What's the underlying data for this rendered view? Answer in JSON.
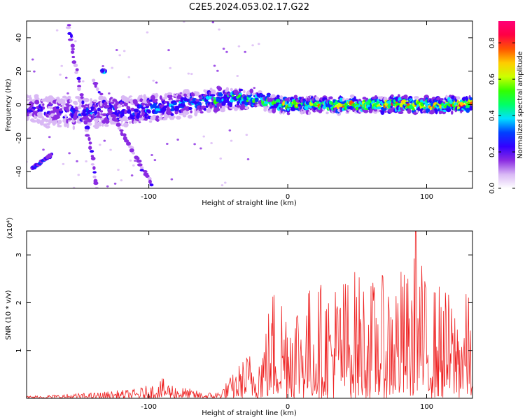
{
  "title": "C2E5.2024.053.02.17.G22",
  "colors": {
    "snr_line": "#ee2222",
    "colormap": [
      "#ffffff",
      "#d9b8f5",
      "#8a2be2",
      "#3300ff",
      "#0040ff",
      "#00e0ff",
      "#00ff66",
      "#33ff00",
      "#ccff00",
      "#ffcc00",
      "#ff5500",
      "#ff0044",
      "#ff0077"
    ]
  },
  "chart_data": [
    {
      "type": "heatmap",
      "xlabel": "Height of straight line (km)",
      "ylabel": "Frequency (Hz)",
      "xlim": [
        -188,
        133
      ],
      "ylim": [
        -50,
        50
      ],
      "xticks": [
        -100,
        0,
        100
      ],
      "yticks": [
        -40,
        -20,
        0,
        20,
        40
      ],
      "grid": false,
      "colorbar": {
        "label": "Normalized spectral amplitude",
        "range": [
          0,
          0.92
        ],
        "ticks": [
          "0.0",
          "0.2",
          "0.4",
          "0.6",
          "0.8"
        ]
      },
      "band": {
        "x": [
          -188,
          -160,
          -140,
          -120,
          -100,
          -80,
          -60,
          -40,
          -25,
          -10,
          0,
          40,
          80,
          133
        ],
        "center_hz": [
          -3,
          -4,
          -5,
          -4,
          -3,
          -1,
          2,
          4,
          3,
          1,
          0,
          0,
          0,
          0
        ],
        "half_width_hz": [
          9,
          9,
          8,
          8,
          8,
          7,
          7,
          6,
          4,
          4,
          4,
          4,
          4,
          4
        ],
        "peak_amplitude": [
          0.2,
          0.25,
          0.3,
          0.3,
          0.35,
          0.38,
          0.4,
          0.45,
          0.5,
          0.55,
          0.65,
          0.7,
          0.75,
          0.8
        ]
      },
      "features": [
        {
          "x": [
            -158,
            -137
          ],
          "y": [
            48,
            -50
          ],
          "amplitude": 0.15
        },
        {
          "x": [
            -140,
            -98
          ],
          "y": [
            14,
            -48
          ],
          "amplitude": 0.15
        },
        {
          "x": [
            -184,
            -170
          ],
          "y": [
            -38,
            -30
          ],
          "amplitude": 0.2
        },
        {
          "x": [
            -132,
            -133
          ],
          "y": [
            20,
            20
          ],
          "amplitude": 0.3
        }
      ]
    },
    {
      "type": "line",
      "xlabel": "Height of straight line (km)",
      "ylabel": "SNR (10 * v/v)",
      "y_multiplier": "(x10⁴)",
      "xlim": [
        -188,
        133
      ],
      "ylim": [
        0,
        3.5
      ],
      "xticks": [
        -100,
        0,
        100
      ],
      "yticks": [
        1,
        2,
        3
      ],
      "grid": false,
      "envelope": {
        "x": [
          -188,
          -140,
          -110,
          -100,
          -90,
          -80,
          -70,
          -60,
          -50,
          -40,
          -30,
          -20,
          -10,
          0,
          10,
          20,
          30,
          40,
          50,
          60,
          70,
          80,
          90,
          92,
          100,
          110,
          120,
          133
        ],
        "y": [
          0.05,
          0.12,
          0.2,
          0.28,
          0.42,
          0.28,
          0.2,
          0.12,
          0.15,
          0.5,
          0.95,
          1.1,
          2.5,
          2.35,
          2.3,
          2.45,
          2.5,
          2.6,
          2.75,
          2.5,
          2.6,
          2.8,
          2.6,
          3.5,
          2.4,
          2.45,
          2.1,
          2.3
        ]
      }
    }
  ]
}
